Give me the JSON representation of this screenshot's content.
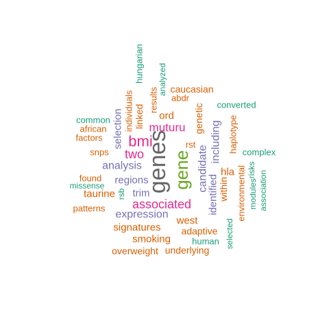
{
  "colors": {
    "teal": "#1b9e77",
    "orange": "#d95f02",
    "purple": "#7570b3",
    "magenta": "#e7298a",
    "green": "#66a61e",
    "gray": "#666666"
  },
  "words": [
    {
      "text": "genes",
      "color": "gray"
    },
    {
      "text": "gene",
      "color": "green"
    },
    {
      "text": "bmi",
      "color": "magenta"
    },
    {
      "text": "associated",
      "color": "magenta"
    },
    {
      "text": "two",
      "color": "magenta"
    },
    {
      "text": "muturu",
      "color": "magenta"
    },
    {
      "text": "analysis",
      "color": "purple"
    },
    {
      "text": "regions",
      "color": "purple"
    },
    {
      "text": "expression",
      "color": "purple"
    },
    {
      "text": "trim",
      "color": "purple"
    },
    {
      "text": "selection",
      "color": "purple"
    },
    {
      "text": "candidate",
      "color": "purple"
    },
    {
      "text": "including",
      "color": "purple"
    },
    {
      "text": "identified",
      "color": "purple"
    },
    {
      "text": "linked",
      "color": "orange"
    },
    {
      "text": "individuals",
      "color": "orange"
    },
    {
      "text": "results",
      "color": "orange"
    },
    {
      "text": "ord",
      "color": "orange"
    },
    {
      "text": "abdr",
      "color": "orange"
    },
    {
      "text": "caucasian",
      "color": "orange"
    },
    {
      "text": "genetic",
      "color": "orange"
    },
    {
      "text": "rst",
      "color": "orange"
    },
    {
      "text": "haplotype",
      "color": "orange"
    },
    {
      "text": "hla",
      "color": "orange"
    },
    {
      "text": "within",
      "color": "orange"
    },
    {
      "text": "environmental",
      "color": "orange"
    },
    {
      "text": "west",
      "color": "orange"
    },
    {
      "text": "adaptive",
      "color": "orange"
    },
    {
      "text": "signatures",
      "color": "orange"
    },
    {
      "text": "smoking",
      "color": "orange"
    },
    {
      "text": "overweight",
      "color": "orange"
    },
    {
      "text": "underlying",
      "color": "orange"
    },
    {
      "text": "taurine",
      "color": "orange"
    },
    {
      "text": "found",
      "color": "orange"
    },
    {
      "text": "snps",
      "color": "orange"
    },
    {
      "text": "factors",
      "color": "orange"
    },
    {
      "text": "african",
      "color": "orange"
    },
    {
      "text": "patterns",
      "color": "orange"
    },
    {
      "text": "common",
      "color": "teal"
    },
    {
      "text": "missense",
      "color": "teal"
    },
    {
      "text": "rsb",
      "color": "teal"
    },
    {
      "text": "hungarian",
      "color": "teal"
    },
    {
      "text": "analyzed",
      "color": "teal"
    },
    {
      "text": "converted",
      "color": "teal"
    },
    {
      "text": "complex",
      "color": "teal"
    },
    {
      "text": "risks",
      "color": "teal"
    },
    {
      "text": "modules",
      "color": "teal"
    },
    {
      "text": "association",
      "color": "teal"
    },
    {
      "text": "selected",
      "color": "teal"
    },
    {
      "text": "human",
      "color": "teal"
    }
  ]
}
